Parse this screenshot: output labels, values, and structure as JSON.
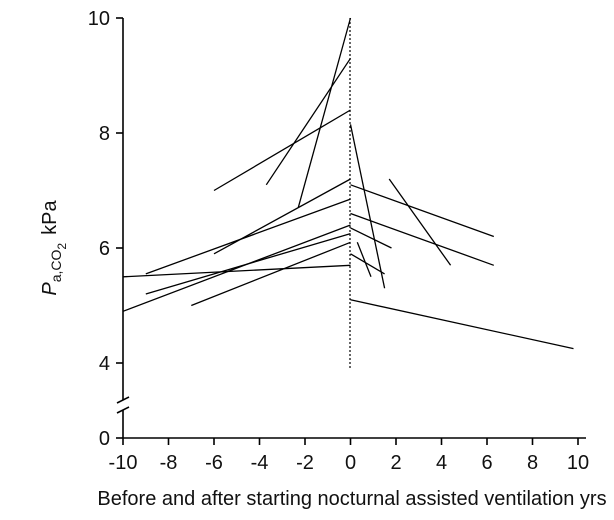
{
  "chart_data": {
    "type": "line",
    "title": "",
    "xlabel": "Before and after starting nocturnal assisted ventilation  yrs",
    "ylabel": {
      "main": "P",
      "sub1": "a,CO",
      "sub2": "2",
      "unit": "kPa"
    },
    "xlim": [
      -10,
      10
    ],
    "ylim": [
      4,
      10
    ],
    "x_ticks": [
      -10,
      -8,
      -6,
      -4,
      -2,
      0,
      2,
      4,
      6,
      8,
      10
    ],
    "y_ticks": [
      0,
      4,
      6,
      8,
      10
    ],
    "axis_break": "y between 0 and 4",
    "reference_line": {
      "x": 0,
      "style": "dotted"
    },
    "grid": false,
    "series": [
      {
        "x": [
          -6,
          0
        ],
        "y": [
          7.0,
          8.4
        ]
      },
      {
        "x": [
          -3.7,
          0
        ],
        "y": [
          7.1,
          9.3
        ]
      },
      {
        "x": [
          -2.3,
          0
        ],
        "y": [
          6.7,
          10.0
        ]
      },
      {
        "x": [
          -6,
          0
        ],
        "y": [
          5.9,
          7.2
        ]
      },
      {
        "x": [
          -10,
          0
        ],
        "y": [
          4.9,
          6.4
        ]
      },
      {
        "x": [
          -9,
          0
        ],
        "y": [
          5.55,
          6.85
        ]
      },
      {
        "x": [
          -10,
          0
        ],
        "y": [
          5.5,
          5.7
        ]
      },
      {
        "x": [
          -9,
          0
        ],
        "y": [
          5.2,
          6.25
        ]
      },
      {
        "x": [
          -7,
          0
        ],
        "y": [
          5.0,
          6.1
        ]
      },
      {
        "x": [
          0,
          6.3
        ],
        "y": [
          7.1,
          6.2
        ]
      },
      {
        "x": [
          0,
          6.3
        ],
        "y": [
          6.6,
          5.7
        ]
      },
      {
        "x": [
          0,
          1.8
        ],
        "y": [
          6.35,
          6.0
        ]
      },
      {
        "x": [
          1.7,
          4.4
        ],
        "y": [
          7.2,
          5.7
        ]
      },
      {
        "x": [
          0,
          1.5
        ],
        "y": [
          8.15,
          5.3
        ]
      },
      {
        "x": [
          0.3,
          0.9
        ],
        "y": [
          6.1,
          5.5
        ]
      },
      {
        "x": [
          0,
          1.5
        ],
        "y": [
          5.9,
          5.55
        ]
      },
      {
        "x": [
          0,
          9.8
        ],
        "y": [
          5.1,
          4.25
        ]
      }
    ]
  }
}
